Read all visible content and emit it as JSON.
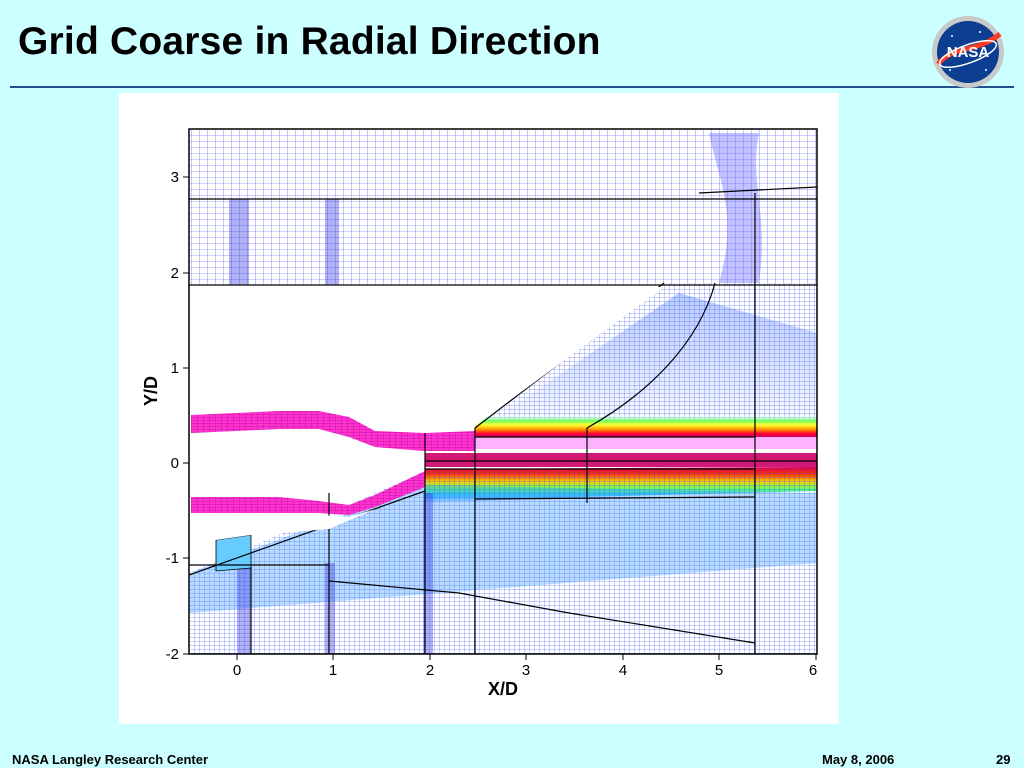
{
  "slide": {
    "title": "Grid Coarse in Radial Direction",
    "footer_org": "NASA Langley Research Center",
    "footer_date": "May 8, 2006",
    "page_number": "29",
    "logo_text": "NASA"
  },
  "plot": {
    "xlabel": "X/D",
    "ylabel": "Y/D",
    "x_ticks": [
      "0",
      "1",
      "2",
      "3",
      "4",
      "5",
      "6"
    ],
    "y_ticks": [
      "3",
      "2",
      "1",
      "0",
      "-1",
      "-2"
    ],
    "xlim": [
      -0.5,
      6
    ],
    "ylim": [
      -2,
      3.5
    ]
  },
  "colors": {
    "background": "#ccffff",
    "grid_line": "#3b3bff",
    "nozzle_fill": "#ff33cc",
    "block_line": "#000000",
    "title_rule": "#1f4f8f"
  }
}
